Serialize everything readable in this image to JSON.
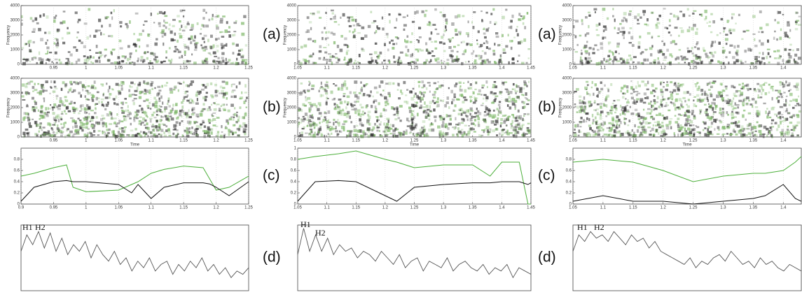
{
  "columns": [
    {
      "rows": [
        {
          "type": "spectrogram",
          "xlim": [
            0.9,
            1.25
          ],
          "xticks": [
            0.95,
            1,
            1.05,
            1.1,
            1.15,
            1.2,
            1.25
          ],
          "ylim": [
            0,
            4000
          ],
          "yticks": [
            0,
            1000,
            2000,
            3000,
            4000
          ],
          "y_label": "Frequency"
        },
        {
          "type": "spectrogram",
          "xlim": [
            0.9,
            1.25
          ],
          "xticks": [
            0.95,
            1,
            1.05,
            1.1,
            1.15,
            1.2,
            1.25
          ],
          "ylim": [
            0,
            4000
          ],
          "yticks": [
            0,
            1000,
            2000,
            3000,
            4000
          ],
          "y_label": "Frequency",
          "x_label": "Time"
        },
        {
          "type": "line",
          "xlim": [
            0.9,
            1.25
          ],
          "xticks": [
            0.9,
            0.95,
            1,
            1.05,
            1.1,
            1.15,
            1.2,
            1.25
          ],
          "ylim": [
            0,
            1
          ],
          "yticks": [
            0,
            0.2,
            0.4,
            0.6,
            0.8
          ],
          "x": [
            0.9,
            0.92,
            0.95,
            0.97,
            0.98,
            1.0,
            1.05,
            1.07,
            1.08,
            1.1,
            1.12,
            1.15,
            1.18,
            1.19,
            1.2,
            1.22,
            1.25
          ],
          "series": [
            {
              "color": "#4caf3a",
              "values": [
                0.5,
                0.55,
                0.65,
                0.7,
                0.3,
                0.22,
                0.25,
                0.35,
                0.4,
                0.55,
                0.62,
                0.68,
                0.65,
                0.45,
                0.25,
                0.3,
                0.5
              ]
            },
            {
              "color": "#111111",
              "values": [
                0.05,
                0.3,
                0.4,
                0.42,
                0.4,
                0.4,
                0.35,
                0.2,
                0.35,
                0.1,
                0.3,
                0.38,
                0.38,
                0.36,
                0.3,
                0.15,
                0.4
              ]
            }
          ]
        },
        {
          "type": "spectrum",
          "ylim": [
            0,
            1
          ],
          "peaks": [
            "H1",
            "H2"
          ],
          "color": "#555555",
          "values": [
            0.6,
            0.85,
            0.7,
            0.9,
            0.65,
            0.88,
            0.6,
            0.8,
            0.55,
            0.7,
            0.6,
            0.75,
            0.5,
            0.7,
            0.55,
            0.45,
            0.6,
            0.4,
            0.5,
            0.3,
            0.45,
            0.35,
            0.5,
            0.3,
            0.4,
            0.45,
            0.25,
            0.4,
            0.3,
            0.45,
            0.35,
            0.5,
            0.3,
            0.4,
            0.25,
            0.35,
            0.2,
            0.3,
            0.25,
            0.35
          ]
        }
      ]
    },
    {
      "rows": [
        {
          "label": "(a)",
          "type": "spectrogram",
          "xlim": [
            1.05,
            1.45
          ],
          "xticks": [
            1.05,
            1.1,
            1.15,
            1.2,
            1.25,
            1.3,
            1.35,
            1.4,
            1.45
          ],
          "ylim": [
            0,
            4000
          ],
          "yticks": [
            0,
            1000,
            2000,
            3000,
            4000
          ],
          "y_label": "Frequency"
        },
        {
          "label": "(b)",
          "type": "spectrogram",
          "xlim": [
            1.05,
            1.45
          ],
          "xticks": [
            1.05,
            1.1,
            1.15,
            1.2,
            1.25,
            1.3,
            1.35,
            1.4,
            1.45
          ],
          "ylim": [
            0,
            4000
          ],
          "yticks": [
            0,
            1000,
            2000,
            3000,
            4000
          ],
          "y_label": "Frequency",
          "x_label": "Time"
        },
        {
          "label": "(c)",
          "type": "line",
          "xlim": [
            1.05,
            1.45
          ],
          "xticks": [
            1.05,
            1.1,
            1.15,
            1.2,
            1.25,
            1.3,
            1.35,
            1.4,
            1.45
          ],
          "ylim": [
            0,
            1
          ],
          "yticks": [
            0,
            0.2,
            0.4,
            0.6,
            0.8,
            1
          ],
          "x": [
            1.05,
            1.08,
            1.12,
            1.15,
            1.2,
            1.22,
            1.25,
            1.3,
            1.35,
            1.38,
            1.4,
            1.43,
            1.445,
            1.45
          ],
          "series": [
            {
              "color": "#4caf3a",
              "values": [
                0.8,
                0.85,
                0.9,
                0.95,
                0.8,
                0.75,
                0.65,
                0.7,
                0.7,
                0.5,
                0.75,
                0.75,
                0,
                0
              ]
            },
            {
              "color": "#111111",
              "values": [
                0.05,
                0.4,
                0.42,
                0.4,
                0.15,
                0.05,
                0.3,
                0.35,
                0.38,
                0.38,
                0.4,
                0.4,
                0.35,
                0.38
              ]
            }
          ]
        },
        {
          "label": "(d)",
          "type": "spectrum",
          "ylim": [
            0,
            1
          ],
          "peaks": [
            "H1",
            "H2"
          ],
          "color": "#555555",
          "values": [
            0.55,
            0.95,
            0.6,
            0.85,
            0.6,
            0.8,
            0.55,
            0.7,
            0.6,
            0.65,
            0.5,
            0.6,
            0.55,
            0.45,
            0.6,
            0.5,
            0.4,
            0.55,
            0.35,
            0.45,
            0.5,
            0.3,
            0.45,
            0.4,
            0.35,
            0.5,
            0.3,
            0.4,
            0.45,
            0.35,
            0.3,
            0.4,
            0.25,
            0.35,
            0.3,
            0.4,
            0.2,
            0.35,
            0.3,
            0.25
          ]
        }
      ]
    },
    {
      "rows": [
        {
          "label": "(a)",
          "type": "spectrogram",
          "xlim": [
            1.05,
            1.43
          ],
          "xticks": [
            1.05,
            1.1,
            1.15,
            1.2,
            1.25,
            1.3,
            1.35,
            1.4
          ],
          "ylim": [
            0,
            4000
          ],
          "yticks": [
            0,
            1000,
            2000,
            3000,
            4000
          ],
          "y_label": "Frequency"
        },
        {
          "label": "(b)",
          "type": "spectrogram",
          "xlim": [
            1.05,
            1.43
          ],
          "xticks": [
            1.05,
            1.1,
            1.15,
            1.2,
            1.25,
            1.3,
            1.35,
            1.4
          ],
          "ylim": [
            0,
            4000
          ],
          "yticks": [
            0,
            1000,
            2000,
            3000,
            4000
          ],
          "y_label": "Frequency",
          "x_label": "Time"
        },
        {
          "label": "(c)",
          "type": "line",
          "xlim": [
            1.05,
            1.43
          ],
          "xticks": [
            1.05,
            1.1,
            1.15,
            1.2,
            1.25,
            1.3,
            1.35,
            1.4
          ],
          "ylim": [
            0,
            1
          ],
          "yticks": [
            0,
            0.2,
            0.4,
            0.6,
            0.8
          ],
          "x": [
            1.05,
            1.1,
            1.15,
            1.2,
            1.25,
            1.3,
            1.35,
            1.37,
            1.4,
            1.42,
            1.43
          ],
          "series": [
            {
              "color": "#4caf3a",
              "values": [
                0.75,
                0.8,
                0.75,
                0.6,
                0.4,
                0.5,
                0.55,
                0.55,
                0.6,
                0.75,
                0.85
              ]
            },
            {
              "color": "#111111",
              "values": [
                0.05,
                0.15,
                0.05,
                0.05,
                0,
                0.05,
                0.1,
                0.15,
                0.35,
                0.1,
                0.05
              ]
            }
          ]
        },
        {
          "label": "(d)",
          "type": "spectrum",
          "ylim": [
            0,
            1
          ],
          "peaks": [
            "H1",
            "H2"
          ],
          "color": "#555555",
          "values": [
            0.6,
            0.85,
            0.75,
            0.9,
            0.8,
            0.85,
            0.75,
            0.9,
            0.8,
            0.7,
            0.85,
            0.75,
            0.8,
            0.65,
            0.75,
            0.6,
            0.55,
            0.5,
            0.45,
            0.4,
            0.5,
            0.35,
            0.45,
            0.4,
            0.5,
            0.55,
            0.45,
            0.6,
            0.5,
            0.4,
            0.45,
            0.35,
            0.5,
            0.4,
            0.45,
            0.35,
            0.3,
            0.4,
            0.35,
            0.3
          ]
        }
      ]
    }
  ]
}
